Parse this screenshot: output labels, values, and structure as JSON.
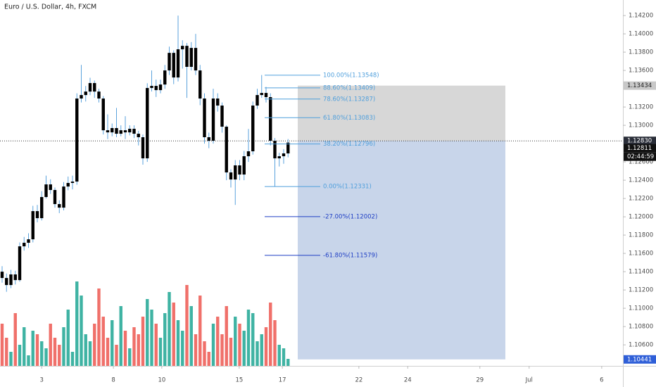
{
  "chart_data": {
    "type": "candlestick",
    "title": "Euro / U.S. Dollar, 4h, FXCM",
    "x": [
      0,
      1,
      2,
      3,
      4,
      5,
      6,
      7,
      8,
      9,
      10,
      11,
      12,
      13,
      14,
      15,
      16,
      17,
      18,
      19,
      20,
      21,
      22,
      23,
      24,
      25,
      26,
      27,
      28,
      29,
      30,
      31,
      32,
      33,
      34,
      35,
      36,
      37,
      38,
      39,
      40,
      41,
      42,
      43,
      44,
      45,
      46,
      47,
      48,
      49,
      50,
      51,
      52,
      53,
      54,
      55,
      56,
      57,
      58,
      59,
      60,
      61,
      62,
      63,
      64,
      65
    ],
    "open": [
      1.114,
      1.11331,
      1.11254,
      1.1137,
      1.11308,
      1.11677,
      1.11716,
      1.11754,
      1.12062,
      1.11985,
      1.12216,
      1.12354,
      1.12293,
      1.12139,
      1.121,
      1.12331,
      1.1237,
      1.12385,
      1.13293,
      1.13331,
      1.13369,
      1.13462,
      1.13369,
      1.13293,
      1.12946,
      1.12923,
      1.1297,
      1.12908,
      1.12946,
      1.12923,
      1.12962,
      1.12908,
      1.1287,
      1.12639,
      1.13408,
      1.13431,
      1.13385,
      1.13446,
      1.136,
      1.13792,
      1.13523,
      1.13831,
      1.13869,
      1.13639,
      1.13846,
      1.136,
      1.13293,
      1.1287,
      1.12831,
      1.13293,
      1.13216,
      1.12985,
      1.12485,
      1.12408,
      1.12562,
      1.12462,
      1.12662,
      1.12716,
      1.13216,
      1.13331,
      1.13354,
      1.13308,
      1.12831,
      1.12639,
      1.12662,
      1.12693
    ],
    "high": [
      1.1146,
      1.1138,
      1.1142,
      1.1141,
      1.1172,
      1.1178,
      1.1182,
      1.1212,
      1.1213,
      1.1228,
      1.1245,
      1.1241,
      1.1232,
      1.1218,
      1.1238,
      1.1244,
      1.1245,
      1.1335,
      1.1366,
      1.1343,
      1.1352,
      1.1349,
      1.134,
      1.1332,
      1.1312,
      1.1302,
      1.1319,
      1.13,
      1.131,
      1.13,
      1.13,
      1.1294,
      1.129,
      1.1346,
      1.136,
      1.135,
      1.135,
      1.1366,
      1.1386,
      1.1382,
      1.142,
      1.1393,
      1.139,
      1.1391,
      1.14,
      1.1366,
      1.1335,
      1.1292,
      1.134,
      1.1335,
      1.1325,
      1.13,
      1.1252,
      1.1262,
      1.1262,
      1.1272,
      1.1296,
      1.1326,
      1.134,
      1.1355,
      1.1342,
      1.1335,
      1.1286,
      1.127,
      1.1274,
      1.1285
    ],
    "low": [
      1.1128,
      1.1118,
      1.1122,
      1.1126,
      1.1129,
      1.1163,
      1.1166,
      1.1172,
      1.1194,
      1.1196,
      1.122,
      1.1225,
      1.121,
      1.1204,
      1.1207,
      1.1229,
      1.123,
      1.1235,
      1.1325,
      1.1326,
      1.1333,
      1.133,
      1.1325,
      1.129,
      1.1285,
      1.1288,
      1.1287,
      1.1288,
      1.1285,
      1.1289,
      1.1286,
      1.1278,
      1.1257,
      1.126,
      1.1337,
      1.1331,
      1.1335,
      1.134,
      1.1355,
      1.1345,
      1.1348,
      1.1362,
      1.133,
      1.136,
      1.1355,
      1.1322,
      1.128,
      1.1275,
      1.128,
      1.1315,
      1.1292,
      1.124,
      1.1232,
      1.1213,
      1.124,
      1.124,
      1.126,
      1.1268,
      1.1318,
      1.133,
      1.1325,
      1.1278,
      1.1233,
      1.1255,
      1.1258,
      1.1265
    ],
    "close": [
      1.11331,
      1.11254,
      1.1137,
      1.11308,
      1.11677,
      1.11716,
      1.11754,
      1.12062,
      1.11985,
      1.12216,
      1.12354,
      1.12293,
      1.12139,
      1.121,
      1.12331,
      1.1237,
      1.12385,
      1.13293,
      1.13331,
      1.13369,
      1.13462,
      1.13369,
      1.13293,
      1.12946,
      1.12923,
      1.1297,
      1.12908,
      1.12946,
      1.12923,
      1.12962,
      1.12908,
      1.1287,
      1.12639,
      1.13408,
      1.13431,
      1.13385,
      1.13446,
      1.136,
      1.13792,
      1.13523,
      1.13831,
      1.13869,
      1.13639,
      1.13846,
      1.136,
      1.13293,
      1.1287,
      1.12831,
      1.13293,
      1.13216,
      1.12985,
      1.12485,
      1.12408,
      1.12562,
      1.12462,
      1.12662,
      1.12716,
      1.13216,
      1.13331,
      1.13354,
      1.13308,
      1.12831,
      1.12639,
      1.12662,
      1.12693,
      1.12811
    ],
    "volume": [
      60,
      40,
      20,
      75,
      30,
      55,
      15,
      50,
      45,
      35,
      25,
      60,
      40,
      30,
      55,
      80,
      20,
      120,
      100,
      45,
      35,
      60,
      110,
      70,
      40,
      65,
      30,
      85,
      50,
      25,
      55,
      45,
      70,
      95,
      80,
      60,
      40,
      75,
      105,
      90,
      65,
      50,
      115,
      85,
      45,
      100,
      35,
      20,
      60,
      70,
      45,
      85,
      40,
      70,
      60,
      50,
      80,
      75,
      35,
      45,
      55,
      90,
      65,
      30,
      25,
      10
    ],
    "volume_colors": {
      "up": "#3fb3a3",
      "down": "#f0706a"
    },
    "candle_color": "#000000",
    "wick_color": "#5aa2dc",
    "xlim": [
      -0.48,
      141.12
    ],
    "xticks": [
      {
        "value": 9,
        "label": "3"
      },
      {
        "value": 25.3,
        "label": "8"
      },
      {
        "value": 36.3,
        "label": "10"
      },
      {
        "value": 53.9,
        "label": "15"
      },
      {
        "value": 63.7,
        "label": "17"
      },
      {
        "value": 81.1,
        "label": "22"
      },
      {
        "value": 92.2,
        "label": "24"
      },
      {
        "value": 108.6,
        "label": "29"
      },
      {
        "value": 119.8,
        "label": "Jul"
      },
      {
        "value": 136.3,
        "label": "6"
      }
    ],
    "ylim": [
      1.1037,
      1.1437
    ],
    "yticks": [
      {
        "value": 1.142,
        "label": "1.14200"
      },
      {
        "value": 1.14,
        "label": "1.14000"
      },
      {
        "value": 1.138,
        "label": "1.13800"
      },
      {
        "value": 1.136,
        "label": "1.13600"
      },
      {
        "value": 1.132,
        "label": "1.13200"
      },
      {
        "value": 1.13,
        "label": "1.13000"
      },
      {
        "value": 1.126,
        "label": "1.12600"
      },
      {
        "value": 1.124,
        "label": "1.12400"
      },
      {
        "value": 1.122,
        "label": "1.12200"
      },
      {
        "value": 1.12,
        "label": "1.12000"
      },
      {
        "value": 1.118,
        "label": "1.11800"
      },
      {
        "value": 1.116,
        "label": "1.11600"
      },
      {
        "value": 1.114,
        "label": "1.11400"
      },
      {
        "value": 1.112,
        "label": "1.11200"
      },
      {
        "value": 1.11,
        "label": "1.11000"
      },
      {
        "value": 1.108,
        "label": "1.10800"
      },
      {
        "value": 1.106,
        "label": "1.10600"
      }
    ],
    "fib_levels": [
      {
        "label": "100.00%(1.13548)",
        "value": 1.13548,
        "color": "#4f9fdc"
      },
      {
        "label": "88.60%(1.13409)",
        "value": 1.13409,
        "color": "#4f9fdc"
      },
      {
        "label": "78.60%(1.13287)",
        "value": 1.13287,
        "color": "#4f9fdc"
      },
      {
        "label": "61.80%(1.13083)",
        "value": 1.13083,
        "color": "#4f9fdc"
      },
      {
        "label": "38.20%(1.12796)",
        "value": 1.12796,
        "color": "#4f9fdc"
      },
      {
        "label": "0.00%(1.12331)",
        "value": 1.12331,
        "color": "#4f9fdc"
      },
      {
        "label": "-27.00%(1.12002)",
        "value": 1.12002,
        "color": "#1f3fc4"
      },
      {
        "label": "-61.80%(1.11579)",
        "value": 1.11579,
        "color": "#1f3fc4"
      }
    ],
    "position": {
      "target": {
        "value": 1.13434,
        "label": "1.13434"
      },
      "entry": {
        "value": 1.1283,
        "label": "1.12830"
      },
      "stop": {
        "value": 1.10441,
        "label": "1.10441"
      }
    },
    "last_price": {
      "value": 1.12811,
      "label": "1.12811"
    },
    "countdown": "02:44:59"
  }
}
